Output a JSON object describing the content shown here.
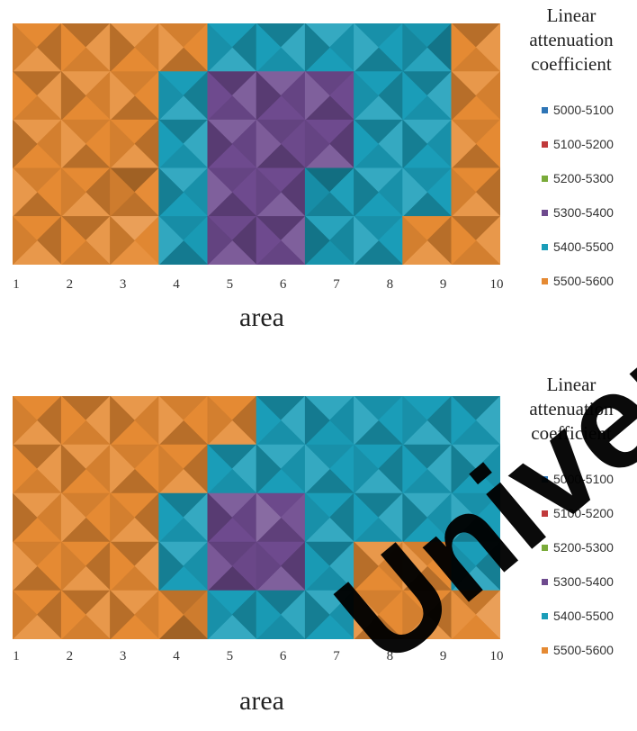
{
  "colors": {
    "5000-5100": "#2e75b6",
    "5100-5200": "#c0393b",
    "5200-5300": "#7aab3a",
    "5300-5400": "#6e4a8e",
    "5400-5500": "#1a9db8",
    "5500-5600": "#e58a33"
  },
  "chart_data": [
    {
      "type": "heatmap",
      "chart_subtype": "contour surface (top view)",
      "xlabel": "area",
      "x_ticks": [
        "1",
        "2",
        "3",
        "4",
        "5",
        "6",
        "7",
        "8",
        "9",
        "10"
      ],
      "y_rows": 5,
      "legend_title": "Linear attenuation coefficient",
      "legend_position": "right",
      "legend": [
        "5000-5100",
        "5100-5200",
        "5200-5300",
        "5300-5400",
        "5400-5500",
        "5500-5600"
      ],
      "grid": [
        [
          5550,
          5550,
          5550,
          5550,
          5450,
          5450,
          5450,
          5450,
          5420,
          5550
        ],
        [
          5550,
          5550,
          5550,
          5450,
          5350,
          5350,
          5350,
          5450,
          5450,
          5550
        ],
        [
          5550,
          5550,
          5550,
          5450,
          5350,
          5340,
          5350,
          5450,
          5450,
          5550
        ],
        [
          5550,
          5550,
          5500,
          5450,
          5350,
          5350,
          5400,
          5450,
          5450,
          5550
        ],
        [
          5550,
          5550,
          5580,
          5440,
          5340,
          5350,
          5420,
          5450,
          5550,
          5550
        ]
      ]
    },
    {
      "type": "heatmap",
      "chart_subtype": "contour surface (top view)",
      "xlabel": "area",
      "x_ticks": [
        "1",
        "2",
        "3",
        "4",
        "5",
        "6",
        "7",
        "8",
        "9",
        "10"
      ],
      "y_rows": 5,
      "legend_title": "Linear attenuation coefficient",
      "legend_position": "right",
      "legend": [
        "5000-5100",
        "5100-5200",
        "5200-5300",
        "5300-5400",
        "5400-5500",
        "5500-5600"
      ],
      "grid": [
        [
          5550,
          5550,
          5550,
          5550,
          5550,
          5450,
          5440,
          5450,
          5450,
          5450
        ],
        [
          5550,
          5550,
          5550,
          5550,
          5450,
          5450,
          5450,
          5450,
          5450,
          5450
        ],
        [
          5550,
          5550,
          5550,
          5450,
          5350,
          5380,
          5450,
          5450,
          5450,
          5450
        ],
        [
          5550,
          5550,
          5550,
          5450,
          5330,
          5350,
          5440,
          5550,
          5550,
          5450
        ],
        [
          5550,
          5550,
          5550,
          5500,
          5450,
          5440,
          5450,
          5550,
          5550,
          5580
        ]
      ]
    }
  ],
  "watermark": {
    "text": "Universit"
  }
}
